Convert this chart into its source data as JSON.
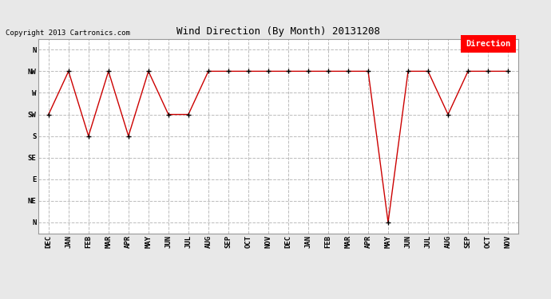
{
  "title": "Wind Direction (By Month) 20131208",
  "copyright": "Copyright 2013 Cartronics.com",
  "legend_label": "Direction",
  "legend_color": "#ff0000",
  "legend_text_color": "#ffffff",
  "x_labels": [
    "DEC",
    "JAN",
    "FEB",
    "MAR",
    "APR",
    "MAY",
    "JUN",
    "JUL",
    "AUG",
    "SEP",
    "OCT",
    "NOV",
    "DEC",
    "JAN",
    "FEB",
    "MAR",
    "APR",
    "MAY",
    "JUN",
    "JUL",
    "AUG",
    "SEP",
    "OCT",
    "NOV"
  ],
  "y_labels_bottom_to_top": [
    "N",
    "NE",
    "E",
    "SE",
    "S",
    "SW",
    "W",
    "NW",
    "N"
  ],
  "y_data": [
    5,
    7,
    4,
    7,
    4,
    7,
    5,
    5,
    7,
    7,
    7,
    7,
    7,
    7,
    7,
    7,
    7,
    0,
    7,
    7,
    5,
    7,
    7,
    7
  ],
  "line_color": "#cc0000",
  "marker_color": "#000000",
  "bg_color": "#e8e8e8",
  "plot_bg_color": "#ffffff",
  "grid_color": "#bbbbbb",
  "title_fontsize": 9,
  "copyright_fontsize": 6.5,
  "tick_fontsize": 6.5,
  "legend_fontsize": 7.5
}
